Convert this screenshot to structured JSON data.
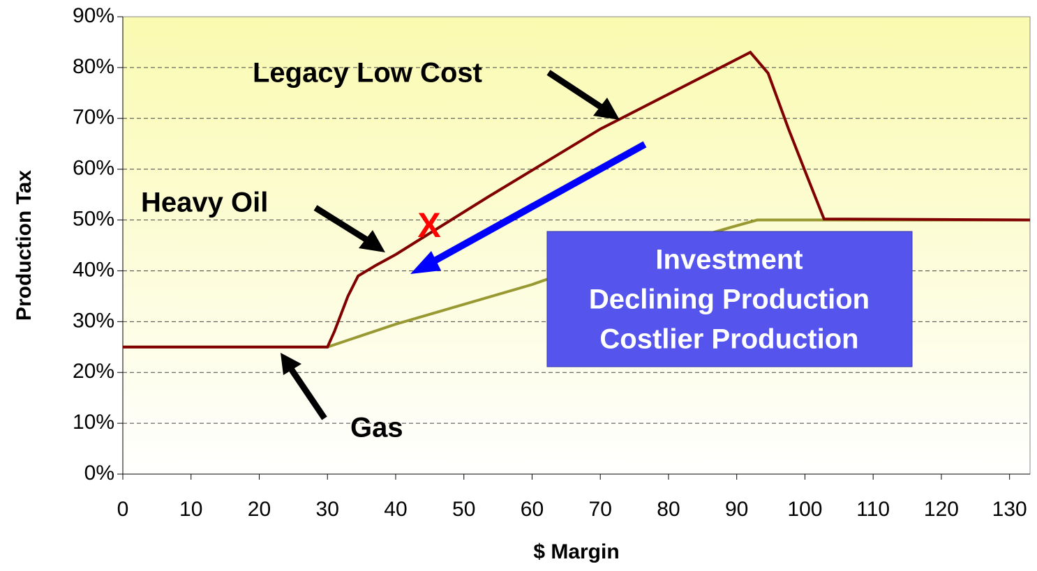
{
  "chart_data": {
    "type": "line",
    "xlabel": "$ Margin",
    "ylabel": "Production Tax",
    "xlim": [
      0,
      133
    ],
    "xticks": [
      0,
      10,
      20,
      30,
      40,
      50,
      60,
      70,
      80,
      90,
      100,
      110,
      120,
      130
    ],
    "ylim": [
      0,
      90
    ],
    "yticks": [
      {
        "value": 0,
        "label": "0%"
      },
      {
        "value": 10,
        "label": "10%"
      },
      {
        "value": 20,
        "label": "20%"
      },
      {
        "value": 30,
        "label": "30%"
      },
      {
        "value": 40,
        "label": "40%"
      },
      {
        "value": 50,
        "label": "50%"
      },
      {
        "value": 60,
        "label": "60%"
      },
      {
        "value": 70,
        "label": "70%"
      },
      {
        "value": 80,
        "label": "80%"
      },
      {
        "value": 90,
        "label": "90%"
      }
    ],
    "grid": true,
    "series": [
      {
        "name": "Legacy Low Cost",
        "color": "#800000",
        "x": [
          0,
          30,
          31,
          33,
          34.5,
          37,
          40,
          53.5,
          70,
          92,
          94.6,
          97.6,
          100.2,
          102.8,
          133
        ],
        "values": [
          25,
          25,
          28,
          35,
          39,
          41,
          43.2,
          54.5,
          67.9,
          83,
          78.9,
          67.9,
          59,
          50.2,
          50
        ]
      },
      {
        "name": "Gas",
        "color": "#999933",
        "x": [
          0,
          30,
          40,
          60,
          70,
          80,
          89.5,
          93,
          133
        ],
        "values": [
          25,
          25,
          29.5,
          37.3,
          42,
          45,
          48.7,
          50,
          50
        ]
      }
    ],
    "annotations": [
      "Legacy Low Cost",
      "Heavy Oil",
      "Gas",
      "X"
    ],
    "box_lines": [
      "Investment",
      "Declining Production",
      "Costlier Production"
    ]
  }
}
